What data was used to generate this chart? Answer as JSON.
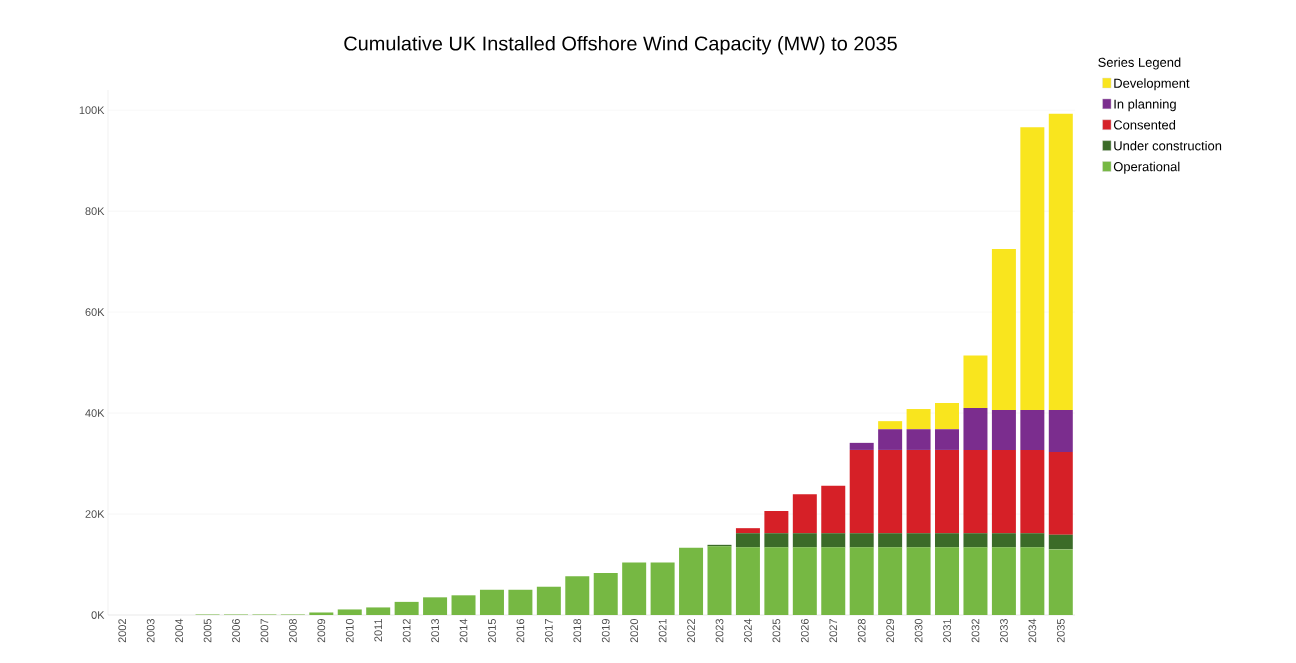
{
  "chart_data": {
    "type": "bar",
    "title": "Cumulative UK Installed Offshore Wind Capacity (MW) to 2035",
    "stacked": true,
    "legend_title": "Series Legend",
    "legend": "top right",
    "grid": "y",
    "categories": [
      "2002",
      "2003",
      "2004",
      "2005",
      "2006",
      "2007",
      "2008",
      "2009",
      "2010",
      "2011",
      "2012",
      "2013",
      "2014",
      "2015",
      "2016",
      "2017",
      "2018",
      "2019",
      "2020",
      "2021",
      "2022",
      "2023",
      "2024",
      "2025",
      "2026",
      "2027",
      "2028",
      "2029",
      "2030",
      "2031",
      "2032",
      "2033",
      "2034",
      "2035"
    ],
    "ylim": [
      0,
      104000
    ],
    "yticks": [
      {
        "value": 0,
        "label": "0K"
      },
      {
        "value": 20000,
        "label": "20K"
      },
      {
        "value": 40000,
        "label": "40K"
      },
      {
        "value": 60000,
        "label": "60K"
      },
      {
        "value": 80000,
        "label": "80K"
      },
      {
        "value": 100000,
        "label": "100K"
      }
    ],
    "series": [
      {
        "name": "Operational",
        "color": "#76b843",
        "values": [
          0,
          0,
          0,
          100,
          100,
          100,
          100,
          500,
          1100,
          1500,
          2600,
          3500,
          3900,
          5000,
          5000,
          5600,
          7700,
          8300,
          10400,
          10400,
          13300,
          13600,
          13400,
          13400,
          13400,
          13400,
          13400,
          13400,
          13400,
          13400,
          13400,
          13400,
          13400,
          13000
        ]
      },
      {
        "name": "Under construction",
        "color": "#3b6b28",
        "values": [
          0,
          0,
          0,
          0,
          0,
          0,
          0,
          0,
          0,
          0,
          0,
          0,
          0,
          0,
          0,
          0,
          0,
          0,
          0,
          0,
          0,
          300,
          2800,
          2800,
          2800,
          2800,
          2800,
          2800,
          2800,
          2800,
          2800,
          2800,
          2800,
          2900
        ]
      },
      {
        "name": "Consented",
        "color": "#d62027",
        "values": [
          0,
          0,
          0,
          0,
          0,
          0,
          0,
          0,
          0,
          0,
          0,
          0,
          0,
          0,
          0,
          0,
          0,
          0,
          0,
          0,
          0,
          0,
          1000,
          4400,
          7700,
          9400,
          16500,
          16500,
          16500,
          16500,
          16500,
          16500,
          16500,
          16400
        ]
      },
      {
        "name": "In planning",
        "color": "#7b2d8e",
        "values": [
          0,
          0,
          0,
          0,
          0,
          0,
          0,
          0,
          0,
          0,
          0,
          0,
          0,
          0,
          0,
          0,
          0,
          0,
          0,
          0,
          0,
          0,
          0,
          0,
          0,
          0,
          1400,
          4100,
          4100,
          4100,
          8300,
          7900,
          7900,
          8300
        ]
      },
      {
        "name": "Development",
        "color": "#f9e51e",
        "values": [
          0,
          0,
          0,
          0,
          0,
          0,
          0,
          0,
          0,
          0,
          0,
          0,
          0,
          0,
          0,
          0,
          0,
          0,
          0,
          0,
          0,
          0,
          0,
          0,
          0,
          0,
          0,
          1600,
          4000,
          5200,
          10400,
          31900,
          56000,
          58700
        ]
      }
    ]
  }
}
